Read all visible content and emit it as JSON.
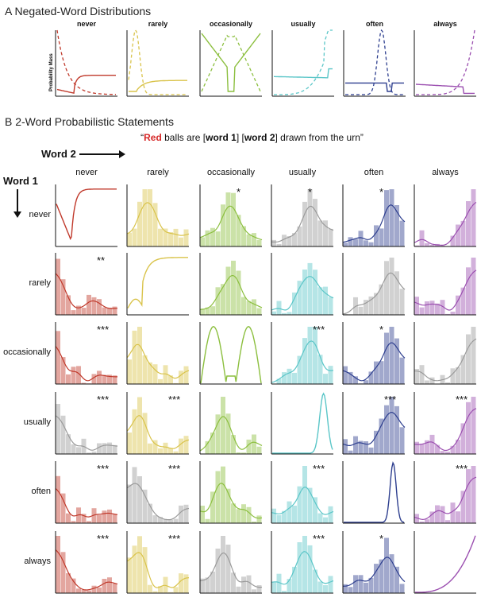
{
  "panel_a": {
    "title": "A Negated-Word Distributions",
    "ylabel": "Probability Mass",
    "columns": [
      "never",
      "rarely",
      "occasionally",
      "usually",
      "often",
      "always"
    ]
  },
  "panel_b": {
    "title": "B 2-Word Probabilistic Statements",
    "quote": {
      "open": "“",
      "red_word": "Red",
      "rest": " balls are [",
      "w1": "word 1",
      "mid": "] [",
      "w2": "word 2",
      "end": "] drawn from the urn”"
    },
    "word2_label": "Word 2",
    "word1_label": "Word 1",
    "columns": [
      "never",
      "rarely",
      "occasionally",
      "usually",
      "often",
      "always"
    ],
    "rows": [
      "never",
      "rarely",
      "occasionally",
      "usually",
      "often",
      "always"
    ]
  },
  "colors": {
    "never": "#c0392b",
    "rarely": "#d9c34a",
    "occasionally": "#8cbf3f",
    "usually": "#5bc6c8",
    "often": "#2e3f8f",
    "always": "#9b4fb0",
    "gray": "#9a9a9a"
  },
  "chart_data": {
    "type": "histogram_grid",
    "significance": [
      [
        "",
        "",
        "*",
        "*",
        "*",
        ""
      ],
      [
        "**",
        "",
        "",
        "",
        "",
        ""
      ],
      [
        "***",
        "",
        "",
        "***",
        "*",
        ""
      ],
      [
        "***",
        "***",
        "",
        "",
        "***",
        "***"
      ],
      [
        "***",
        "***",
        "",
        "***",
        "",
        "***"
      ],
      [
        "***",
        "***",
        "",
        "***",
        "*",
        ""
      ]
    ]
  }
}
